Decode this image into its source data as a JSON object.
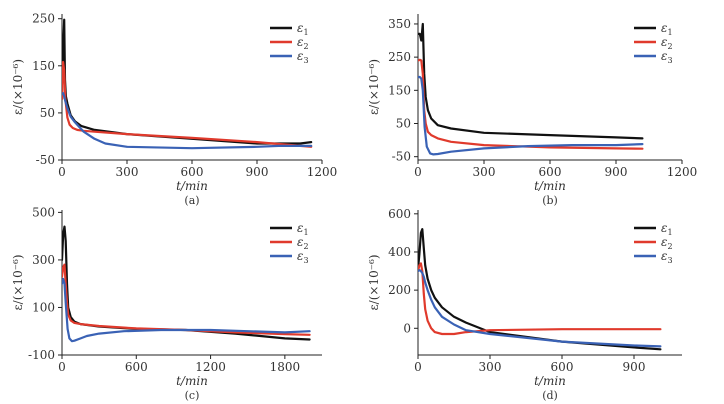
{
  "figure": {
    "background": "#ffffff"
  },
  "chart_data": [
    {
      "type": "line",
      "panel_label": "(a)",
      "xlabel": "t/min",
      "ylabel": "ε/(×10⁻⁶)",
      "xlim": [
        0,
        1200
      ],
      "ylim": [
        -50,
        260
      ],
      "x_ticks": [
        0,
        300,
        600,
        900,
        1200
      ],
      "y_ticks": [
        -50,
        50,
        150,
        250
      ],
      "legend": "top-right",
      "series": [
        {
          "name": "ε1",
          "sub": "1",
          "color": "#111111",
          "x": [
            0,
            6,
            10,
            14,
            18,
            25,
            40,
            60,
            90,
            150,
            300,
            600,
            900,
            1000,
            1100,
            1150
          ],
          "y": [
            80,
            200,
            248,
            120,
            85,
            70,
            45,
            32,
            22,
            14,
            5,
            -5,
            -15,
            -15,
            -15,
            -12
          ]
        },
        {
          "name": "ε2",
          "sub": "2",
          "color": "#e03a2c",
          "x": [
            0,
            5,
            10,
            15,
            25,
            35,
            50,
            70,
            100,
            150,
            300,
            600,
            900,
            1000,
            1100,
            1150
          ],
          "y": [
            80,
            158,
            140,
            80,
            40,
            25,
            18,
            14,
            12,
            10,
            5,
            -3,
            -12,
            -16,
            -20,
            -22
          ]
        },
        {
          "name": "ε3",
          "sub": "3",
          "color": "#3a62b5",
          "x": [
            0,
            5,
            10,
            15,
            25,
            40,
            60,
            80,
            100,
            150,
            200,
            300,
            600,
            900,
            1000,
            1150
          ],
          "y": [
            90,
            92,
            85,
            75,
            60,
            42,
            30,
            20,
            10,
            -5,
            -15,
            -22,
            -25,
            -22,
            -20,
            -20
          ]
        }
      ]
    },
    {
      "type": "line",
      "panel_label": "(b)",
      "xlabel": "t/min",
      "ylabel": "ε/(×10⁻⁶)",
      "xlim": [
        0,
        1200
      ],
      "ylim": [
        -60,
        380
      ],
      "x_ticks": [
        0,
        300,
        600,
        900,
        1200
      ],
      "y_ticks": [
        -50,
        50,
        150,
        250,
        350
      ],
      "legend": "top-right",
      "series": [
        {
          "name": "ε1",
          "sub": "1",
          "color": "#111111",
          "x": [
            0,
            8,
            15,
            22,
            28,
            35,
            45,
            60,
            90,
            150,
            300,
            600,
            900,
            1020
          ],
          "y": [
            320,
            320,
            300,
            350,
            200,
            130,
            90,
            65,
            45,
            35,
            22,
            15,
            8,
            5
          ]
        },
        {
          "name": "ε2",
          "sub": "2",
          "color": "#e03a2c",
          "x": [
            0,
            8,
            15,
            22,
            28,
            35,
            45,
            60,
            90,
            150,
            300,
            600,
            900,
            1020
          ],
          "y": [
            240,
            242,
            240,
            200,
            90,
            50,
            25,
            15,
            5,
            -5,
            -15,
            -22,
            -25,
            -26
          ]
        },
        {
          "name": "ε3",
          "sub": "3",
          "color": "#3a62b5",
          "x": [
            0,
            8,
            15,
            22,
            30,
            40,
            55,
            70,
            90,
            150,
            300,
            500,
            700,
            900,
            1020
          ],
          "y": [
            190,
            190,
            185,
            150,
            40,
            -20,
            -40,
            -43,
            -42,
            -35,
            -25,
            -18,
            -15,
            -15,
            -12
          ]
        }
      ]
    },
    {
      "type": "line",
      "panel_label": "(c)",
      "xlabel": "t/min",
      "ylabel": "ε/(×10⁻⁶)",
      "xlim": [
        0,
        2100
      ],
      "ylim": [
        -100,
        510
      ],
      "x_ticks": [
        0,
        600,
        1200,
        1800
      ],
      "y_ticks": [
        -100,
        100,
        300,
        500
      ],
      "legend": "top-right",
      "series": [
        {
          "name": "ε1",
          "sub": "1",
          "color": "#111111",
          "x": [
            0,
            10,
            20,
            30,
            40,
            50,
            70,
            100,
            150,
            300,
            600,
            1000,
            1400,
            1800,
            2000
          ],
          "y": [
            300,
            410,
            440,
            380,
            200,
            100,
            60,
            40,
            30,
            20,
            10,
            5,
            -10,
            -30,
            -35
          ]
        },
        {
          "name": "ε2",
          "sub": "2",
          "color": "#e03a2c",
          "x": [
            0,
            10,
            20,
            30,
            40,
            50,
            70,
            100,
            150,
            300,
            600,
            1000,
            1400,
            1800,
            2000
          ],
          "y": [
            230,
            270,
            280,
            200,
            120,
            70,
            45,
            35,
            30,
            22,
            12,
            5,
            -5,
            -12,
            -15
          ]
        },
        {
          "name": "ε3",
          "sub": "3",
          "color": "#3a62b5",
          "x": [
            0,
            10,
            20,
            30,
            45,
            60,
            80,
            100,
            150,
            200,
            300,
            500,
            800,
            1200,
            1500,
            1800,
            2000
          ],
          "y": [
            200,
            220,
            200,
            120,
            10,
            -30,
            -42,
            -40,
            -30,
            -20,
            -10,
            0,
            5,
            5,
            0,
            -5,
            0
          ]
        }
      ]
    },
    {
      "type": "line",
      "panel_label": "(d)",
      "xlabel": "t/min",
      "ylabel": "ε/(×10⁻⁶)",
      "xlim": [
        0,
        1100
      ],
      "ylim": [
        -140,
        620
      ],
      "x_ticks": [
        0,
        300,
        600,
        900
      ],
      "y_ticks": [
        0,
        200,
        400,
        600
      ],
      "legend": "top-right",
      "series": [
        {
          "name": "ε1",
          "sub": "1",
          "color": "#111111",
          "x": [
            0,
            6,
            12,
            18,
            24,
            30,
            40,
            55,
            70,
            100,
            150,
            200,
            300,
            600,
            900,
            1010
          ],
          "y": [
            310,
            390,
            500,
            520,
            420,
            330,
            260,
            200,
            160,
            110,
            60,
            30,
            -20,
            -70,
            -100,
            -110
          ]
        },
        {
          "name": "ε2",
          "sub": "2",
          "color": "#e03a2c",
          "x": [
            0,
            6,
            12,
            18,
            24,
            30,
            40,
            55,
            70,
            100,
            150,
            200,
            300,
            600,
            900,
            1010
          ],
          "y": [
            300,
            330,
            340,
            300,
            180,
            100,
            40,
            0,
            -20,
            -30,
            -30,
            -20,
            -10,
            -5,
            -5,
            -5
          ]
        },
        {
          "name": "ε3",
          "sub": "3",
          "color": "#3a62b5",
          "x": [
            0,
            6,
            12,
            18,
            24,
            30,
            40,
            55,
            70,
            100,
            150,
            200,
            300,
            600,
            900,
            1010
          ],
          "y": [
            300,
            305,
            300,
            290,
            270,
            240,
            200,
            150,
            110,
            60,
            20,
            -10,
            -30,
            -70,
            -90,
            -95
          ]
        }
      ]
    }
  ]
}
